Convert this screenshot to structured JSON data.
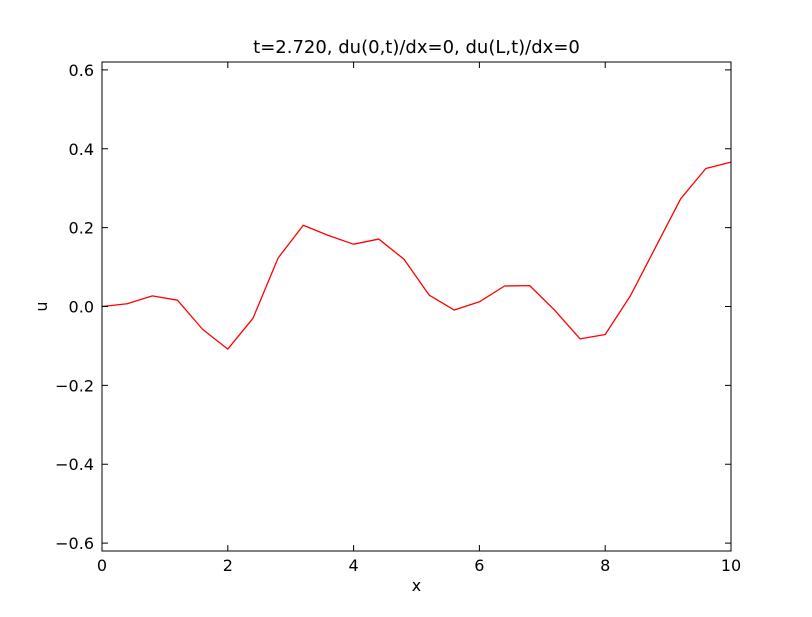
{
  "chart_data": {
    "type": "line",
    "title": "t=2.720, du(0,t)/dx=0, du(L,t)/dx=0",
    "xlabel": "x",
    "ylabel": "u",
    "xlim": [
      0,
      10
    ],
    "ylim": [
      -0.62,
      0.62
    ],
    "xticks": [
      0,
      2,
      4,
      6,
      8,
      10
    ],
    "xtick_labels": [
      "0",
      "2",
      "4",
      "6",
      "8",
      "10"
    ],
    "yticks": [
      -0.6,
      -0.4,
      -0.2,
      0.0,
      0.2,
      0.4,
      0.6
    ],
    "ytick_labels": [
      "−0.6",
      "−0.4",
      "−0.2",
      "0.0",
      "0.2",
      "0.4",
      "0.6"
    ],
    "grid": false,
    "legend": "none",
    "series": [
      {
        "color": "#ff0000",
        "x": [
          0.0,
          0.4,
          0.8,
          1.2,
          1.6,
          2.0,
          2.4,
          2.8,
          3.2,
          3.6,
          4.0,
          4.4,
          4.8,
          5.2,
          5.6,
          6.0,
          6.4,
          6.8,
          7.2,
          7.6,
          8.0,
          8.4,
          8.8,
          9.2,
          9.6,
          10.0
        ],
        "values": [
          0.0,
          0.007,
          0.027,
          0.016,
          -0.058,
          -0.108,
          -0.03,
          0.123,
          0.206,
          0.18,
          0.158,
          0.171,
          0.12,
          0.029,
          -0.009,
          0.012,
          0.052,
          0.053,
          -0.01,
          -0.082,
          -0.071,
          0.027,
          0.15,
          0.273,
          0.35,
          0.366
        ]
      }
    ]
  }
}
